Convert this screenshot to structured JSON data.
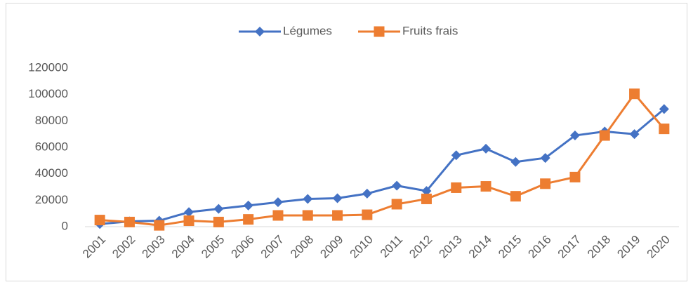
{
  "chart_data": {
    "type": "line",
    "categories": [
      "2001",
      "2002",
      "2003",
      "2004",
      "2005",
      "2006",
      "2007",
      "2008",
      "2009",
      "2010",
      "2011",
      "2012",
      "2013",
      "2014",
      "2015",
      "2016",
      "2017",
      "2018",
      "2019",
      "2020"
    ],
    "series": [
      {
        "name": "Légumes",
        "color": "#4472c4",
        "marker": "diamond",
        "values": [
          2000,
          4000,
          4500,
          11000,
          13500,
          16000,
          18500,
          21000,
          21500,
          25000,
          31000,
          27000,
          54000,
          59000,
          49000,
          52000,
          69000,
          72000,
          70000,
          89000
        ]
      },
      {
        "name": "Fruits frais",
        "color": "#ed7d31",
        "marker": "square",
        "values": [
          5000,
          3500,
          1000,
          4500,
          3500,
          5500,
          8500,
          8500,
          8500,
          9000,
          17000,
          21000,
          29500,
          30500,
          23000,
          32500,
          37500,
          69000,
          100500,
          74000
        ]
      }
    ],
    "ylim": [
      0,
      120000
    ],
    "yticks": [
      0,
      20000,
      40000,
      60000,
      80000,
      100000,
      120000
    ],
    "grid": false,
    "legend": "top"
  }
}
